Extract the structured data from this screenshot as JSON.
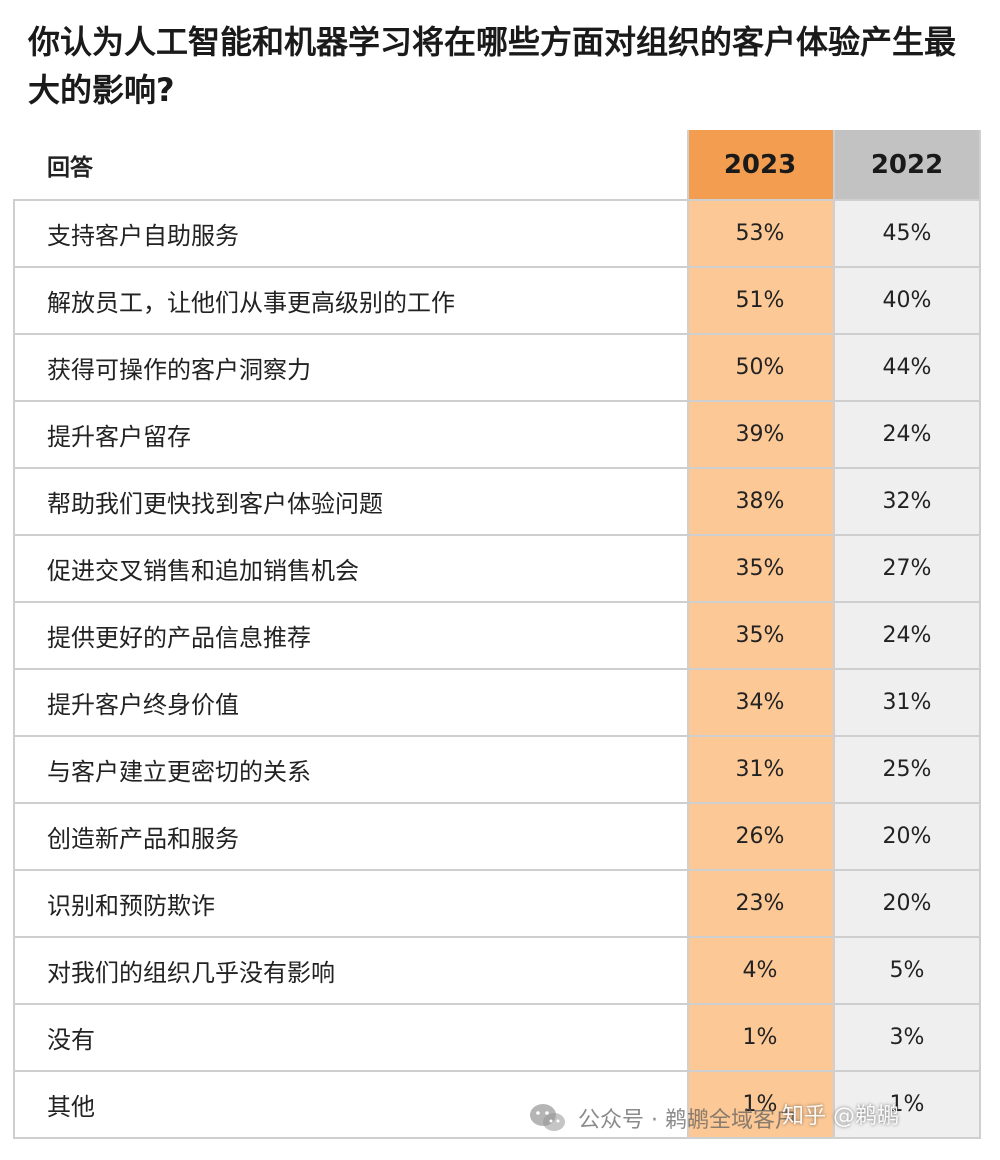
{
  "title": "你认为人工智能和机器学习将在哪些方面对组织的客户体验产生最大的影响?",
  "chart_data": {
    "type": "table",
    "columns": [
      "回答",
      "2023",
      "2022"
    ],
    "rows": [
      {
        "label": "支持客户自助服务",
        "v2023": "53%",
        "v2022": "45%"
      },
      {
        "label": "解放员工，让他们从事更高级别的工作",
        "v2023": "51%",
        "v2022": "40%"
      },
      {
        "label": "获得可操作的客户洞察力",
        "v2023": "50%",
        "v2022": "44%"
      },
      {
        "label": "提升客户留存",
        "v2023": "39%",
        "v2022": "24%"
      },
      {
        "label": "帮助我们更快找到客户体验问题",
        "v2023": "38%",
        "v2022": "32%"
      },
      {
        "label": "促进交叉销售和追加销售机会",
        "v2023": "35%",
        "v2022": "27%"
      },
      {
        "label": "提供更好的产品信息推荐",
        "v2023": "35%",
        "v2022": "24%"
      },
      {
        "label": "提升客户终身价值",
        "v2023": "34%",
        "v2022": "31%"
      },
      {
        "label": "与客户建立更密切的关系",
        "v2023": "31%",
        "v2022": "25%"
      },
      {
        "label": "创造新产品和服务",
        "v2023": "26%",
        "v2022": "20%"
      },
      {
        "label": "识别和预防欺诈",
        "v2023": "23%",
        "v2022": "20%"
      },
      {
        "label": "对我们的组织几乎没有影响",
        "v2023": "4%",
        "v2022": "5%"
      },
      {
        "label": "没有",
        "v2023": "1%",
        "v2022": "3%"
      },
      {
        "label": "其他",
        "v2023": "1%",
        "v2022": "1%"
      }
    ],
    "colors": {
      "col2023_header": "#f29d4f",
      "col2023_body": "#fcc896",
      "col2022_header": "#c2c2c2",
      "col2022_body": "#efefef"
    }
  },
  "watermark": {
    "wechat_text": "公众号 · 鹈鹕全域客户",
    "zhihu_text": "知乎 @鹈鹕",
    "icon": "wechat-icon"
  }
}
